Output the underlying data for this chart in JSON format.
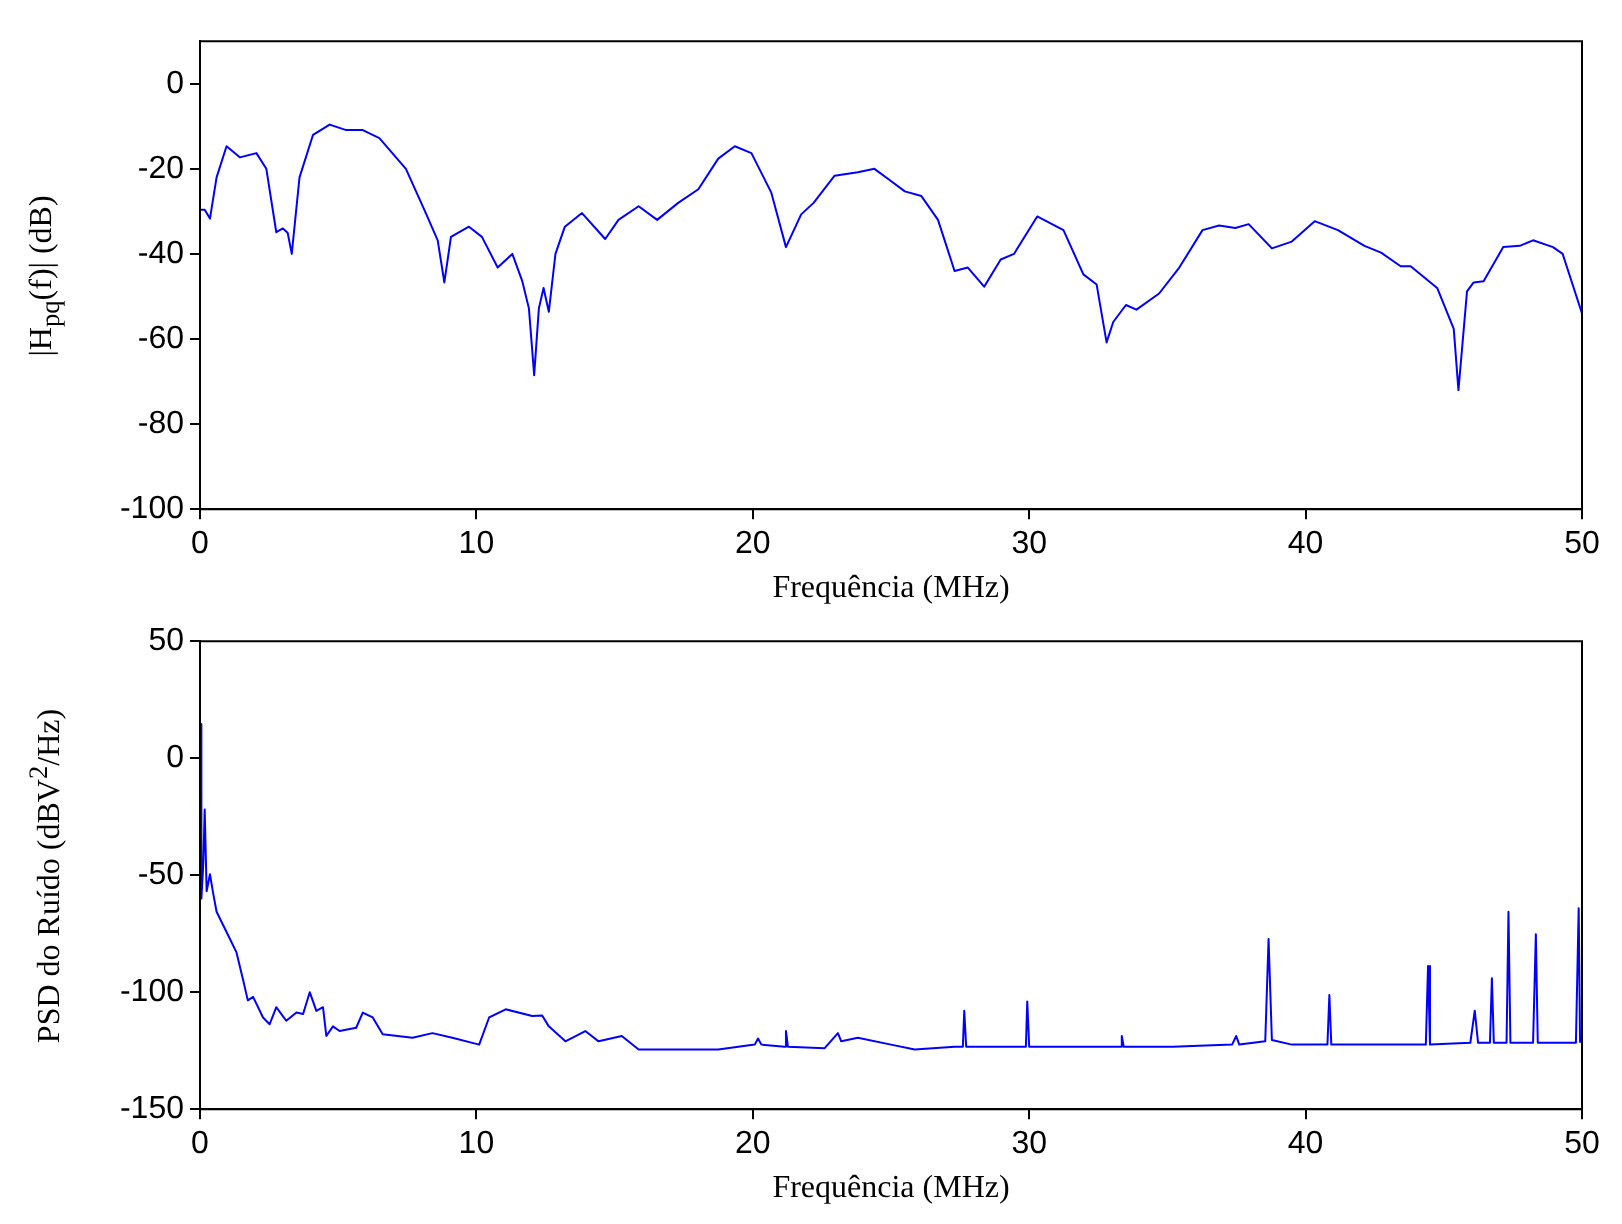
{
  "chart_data": [
    {
      "type": "line",
      "xlabel": "Frequência (MHz)",
      "ylabel": "|H$_{pq}$(f)| (dB)",
      "color": "#0000ff",
      "marker": "none",
      "xlim": [
        0,
        50
      ],
      "xticks": [
        0,
        10,
        20,
        30,
        40,
        50
      ],
      "ylim": [
        -100,
        10
      ],
      "yticks": [
        -100,
        -80,
        -60,
        -40,
        -20,
        0
      ],
      "x": [
        0,
        0.17,
        0.36,
        0.6,
        0.96,
        1.44,
        2.04,
        2.4,
        2.76,
        3.0,
        3.17,
        3.32,
        3.6,
        4.09,
        4.69,
        5.29,
        5.89,
        6.49,
        7.45,
        8.17,
        8.6,
        8.84,
        9.08,
        9.73,
        10.2,
        10.77,
        11.3,
        11.66,
        11.9,
        12.09,
        12.26,
        12.43,
        12.62,
        12.86,
        13.2,
        13.82,
        14.66,
        15.14,
        15.87,
        16.54,
        17.3,
        18.03,
        18.75,
        19.35,
        19.95,
        20.67,
        21.2,
        21.75,
        22.2,
        22.96,
        23.8,
        24.4,
        24.9,
        25.5,
        26.1,
        26.7,
        27.3,
        27.78,
        28.37,
        28.97,
        29.45,
        30.29,
        31.24,
        31.96,
        32.44,
        32.8,
        33.04,
        33.5,
        33.88,
        34.7,
        35.43,
        36.27,
        36.87,
        37.46,
        37.94,
        38.78,
        39.5,
        40.33,
        41.17,
        42.13,
        42.73,
        43.44,
        43.8,
        44.76,
        45.36,
        45.53,
        45.84,
        46.08,
        46.44,
        47.15,
        47.75,
        48.23,
        48.95,
        49.3,
        50
      ],
      "values": [
        -29.6,
        -29.6,
        -31.7,
        -22,
        -14.7,
        -17.3,
        -16.3,
        -20,
        -34.9,
        -34,
        -35,
        -40,
        -22,
        -12,
        -9.6,
        -10.9,
        -10.9,
        -12.8,
        -20,
        -30.4,
        -36.8,
        -46.7,
        -36,
        -33.6,
        -36,
        -43.2,
        -40,
        -46.4,
        -52.8,
        -68.5,
        -52.8,
        -48,
        -53.6,
        -40,
        -33.6,
        -30.4,
        -36.5,
        -32,
        -28.8,
        -32,
        -28,
        -24.8,
        -17.6,
        -14.7,
        -16.3,
        -25.6,
        -38.4,
        -30.7,
        -28,
        -21.6,
        -20.8,
        -20,
        -22.4,
        -25.3,
        -26.4,
        -32,
        -44,
        -43.2,
        -47.7,
        -41.3,
        -40,
        -31.2,
        -34.4,
        -44.8,
        -47.2,
        -60.8,
        -56,
        -52,
        -53.1,
        -49.3,
        -43.2,
        -34.4,
        -33.3,
        -33.9,
        -33,
        -38.7,
        -37.1,
        -32.3,
        -34.4,
        -38.1,
        -39.7,
        -42.9,
        -42.9,
        -48,
        -57.6,
        -72,
        -48.8,
        -46.7,
        -46.4,
        -38.4,
        -38.1,
        -36.8,
        -38.4,
        -40,
        -54
      ]
    },
    {
      "type": "line",
      "xlabel": "Frequência (MHz)",
      "ylabel": "PSD do Ruído (dBV$^{2}$/Hz)",
      "color": "#0000ff",
      "marker": "none",
      "xlim": [
        0,
        50
      ],
      "xticks": [
        0,
        10,
        20,
        30,
        40,
        50
      ],
      "ylim": [
        -150,
        50
      ],
      "yticks": [
        -150,
        -100,
        -50,
        0,
        50
      ],
      "x": [
        0,
        0.05,
        0.12,
        0.17,
        0.24,
        0.36,
        0.48,
        0.6,
        0.96,
        1.32,
        1.56,
        1.73,
        1.92,
        2.28,
        2.52,
        2.76,
        3.12,
        3.49,
        3.73,
        3.97,
        4.21,
        4.45,
        4.57,
        4.81,
        5.05,
        5.65,
        5.89,
        6.25,
        6.61,
        7.69,
        8.41,
        9.13,
        10.1,
        10.46,
        11.06,
        12.02,
        12.38,
        12.62,
        13.22,
        13.94,
        14.42,
        15.26,
        15.87,
        17.3,
        18.75,
        20.07,
        20.19,
        20.31,
        21.15,
        21.2,
        21.27,
        22.6,
        23.08,
        23.2,
        23.8,
        25,
        25.86,
        27.3,
        27.6,
        27.65,
        27.72,
        29.21,
        29.88,
        29.93,
        30,
        31.6,
        33.3,
        33.35,
        33.42,
        35.2,
        37.34,
        37.49,
        37.6,
        38.54,
        38.66,
        38.78,
        39.5,
        40.79,
        40.86,
        40.93,
        44.35,
        44.43,
        44.5,
        45.96,
        46.12,
        46.24,
        46.67,
        46.74,
        46.81,
        47.27,
        47.34,
        47.41,
        48.23,
        48.33,
        48.4,
        49.78,
        49.88,
        49.93
      ],
      "values": [
        14.6,
        -60,
        -45,
        -21.9,
        -56.9,
        -49.6,
        -58,
        -65.6,
        -74.3,
        -83,
        -94.8,
        -103.5,
        -102,
        -110.8,
        -113.7,
        -106.4,
        -112.2,
        -108.7,
        -109.3,
        -100,
        -108,
        -106.4,
        -118.7,
        -114.6,
        -116.6,
        -115.2,
        -108.7,
        -110.8,
        -118,
        -119.5,
        -117.5,
        -119.5,
        -122.4,
        -110.8,
        -107.3,
        -110.2,
        -110,
        -114.6,
        -121,
        -116.6,
        -121,
        -118.7,
        -124.5,
        -124.5,
        -124.5,
        -122.4,
        -119.8,
        -122.4,
        -123.3,
        -116.6,
        -123.3,
        -123.9,
        -117.5,
        -121,
        -119.5,
        -122.4,
        -124.5,
        -123.3,
        -123.3,
        -107.9,
        -123.3,
        -123.3,
        -123.3,
        -104,
        -123.3,
        -123.3,
        -123.3,
        -118.7,
        -123.3,
        -123.3,
        -122.4,
        -118.7,
        -122.4,
        -121,
        -77.3,
        -120.4,
        -122.4,
        -122.4,
        -101.2,
        -122.4,
        -122.4,
        -88.8,
        -122.4,
        -121.6,
        -107.9,
        -121.6,
        -121.6,
        -94,
        -121.6,
        -121.6,
        -65.6,
        -121.6,
        -121.6,
        -75.2,
        -121.6,
        -121.6,
        -64.1,
        -121.6
      ]
    }
  ]
}
